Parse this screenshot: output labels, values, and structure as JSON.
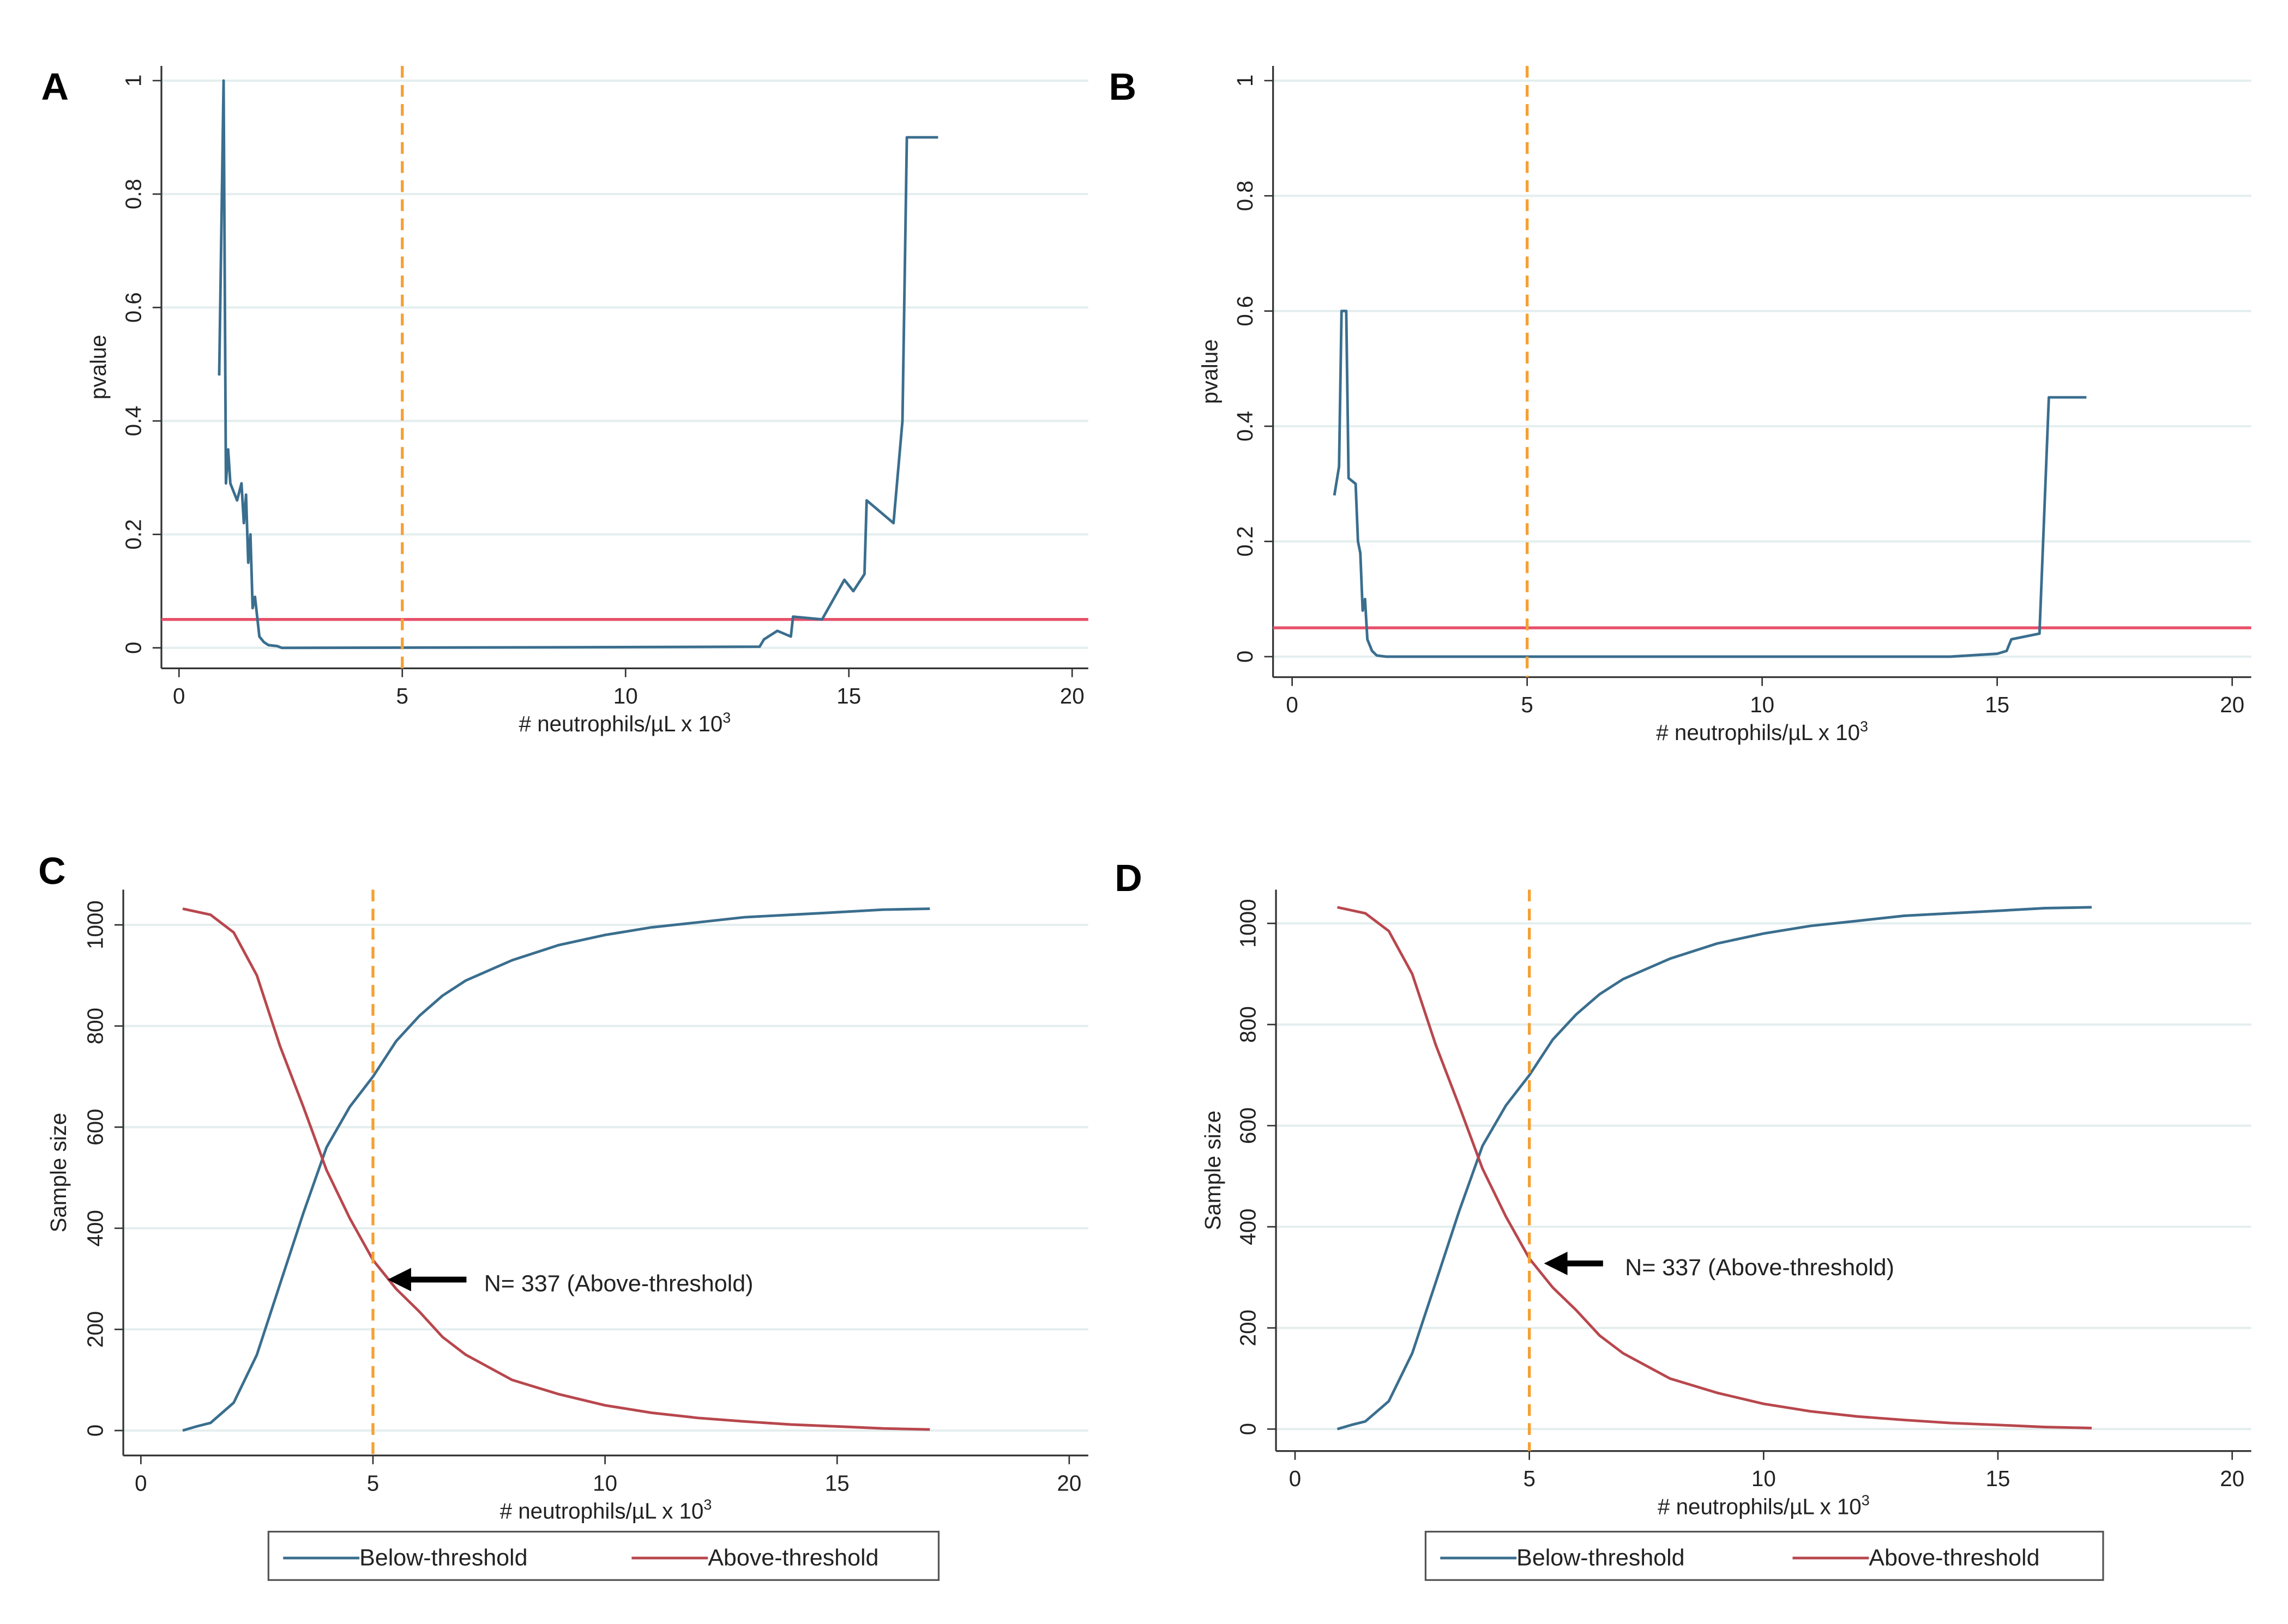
{
  "colors": {
    "below": "#3a6e8e",
    "above": "#b8474d",
    "cutoff": "#f5a033",
    "significance": "#e8506a",
    "grid": "#e4eeee"
  },
  "chart_data": [
    {
      "panel": "A",
      "type": "line",
      "xlabel": "# neutrophils/µL x 10",
      "xlabel_sup": "3",
      "ylabel": "pvalue",
      "xlim": [
        0,
        20
      ],
      "ylim": [
        0,
        1
      ],
      "xticks": [
        "0",
        "5",
        "10",
        "15",
        "20"
      ],
      "yticks": [
        "0",
        "0.2",
        "0.4",
        "0.6",
        "0.8",
        "1"
      ],
      "cutoff_x": 5,
      "significance_y": 0.05,
      "series": [
        {
          "name": "pvalue",
          "x": [
            0.9,
            1.0,
            1.05,
            1.1,
            1.15,
            1.3,
            1.4,
            1.45,
            1.5,
            1.55,
            1.6,
            1.65,
            1.7,
            1.8,
            1.9,
            2.0,
            2.2,
            2.3,
            9,
            13.0,
            13.1,
            13.4,
            13.7,
            13.75,
            14.4,
            14.9,
            15.1,
            15.35,
            15.4,
            16.0,
            16.2,
            16.3,
            17.0
          ],
          "y": [
            0.48,
            1.0,
            0.29,
            0.35,
            0.29,
            0.26,
            0.29,
            0.22,
            0.27,
            0.15,
            0.2,
            0.07,
            0.09,
            0.02,
            0.01,
            0.005,
            0.003,
            0,
            0.001,
            0.002,
            0.015,
            0.03,
            0.02,
            0.055,
            0.05,
            0.12,
            0.1,
            0.13,
            0.26,
            0.22,
            0.4,
            0.9,
            0.9
          ]
        }
      ]
    },
    {
      "panel": "B",
      "type": "line",
      "xlabel": "# neutrophils/µL x 10",
      "xlabel_sup": "3",
      "ylabel": "pvalue",
      "xlim": [
        0,
        20
      ],
      "ylim": [
        0,
        1
      ],
      "xticks": [
        "0",
        "5",
        "10",
        "15",
        "20"
      ],
      "yticks": [
        "0",
        "0.2",
        "0.4",
        "0.6",
        "0.8",
        "1"
      ],
      "cutoff_x": 5,
      "significance_y": 0.05,
      "series": [
        {
          "name": "pvalue",
          "x": [
            0.9,
            1.0,
            1.05,
            1.15,
            1.2,
            1.35,
            1.4,
            1.45,
            1.5,
            1.55,
            1.6,
            1.7,
            1.8,
            2.0,
            14.0,
            15.0,
            15.2,
            15.3,
            15.9,
            16.1,
            16.9
          ],
          "y": [
            0.28,
            0.33,
            0.6,
            0.6,
            0.31,
            0.3,
            0.2,
            0.18,
            0.08,
            0.1,
            0.03,
            0.01,
            0.002,
            0,
            0,
            0.005,
            0.01,
            0.03,
            0.04,
            0.45,
            0.45
          ]
        }
      ]
    },
    {
      "panel": "C",
      "type": "line",
      "xlabel": "# neutrophils/µL x 10",
      "xlabel_sup": "3",
      "ylabel": "Sample size",
      "xlim": [
        0,
        20
      ],
      "ylim": [
        0,
        1000
      ],
      "xticks": [
        "0",
        "5",
        "10",
        "15",
        "20"
      ],
      "yticks": [
        "0",
        "200",
        "400",
        "600",
        "800",
        "1000"
      ],
      "cutoff_x": 5,
      "annotation": "N= 337 (Above-threshold)",
      "annotation_point": [
        5,
        337
      ],
      "legend": [
        "Below-threshold",
        "Above-threshold"
      ],
      "legend_position": "bottom",
      "series": [
        {
          "name": "Below-threshold",
          "x": [
            0.9,
            1.2,
            1.5,
            2,
            2.5,
            3,
            3.5,
            4,
            4.5,
            5,
            5.5,
            6,
            6.5,
            7,
            8,
            9,
            10,
            11,
            12,
            13,
            14,
            15,
            16,
            17
          ],
          "y": [
            0,
            8,
            15,
            55,
            150,
            290,
            430,
            560,
            640,
            700,
            770,
            820,
            860,
            890,
            930,
            960,
            980,
            995,
            1005,
            1015,
            1020,
            1025,
            1030,
            1032
          ]
        },
        {
          "name": "Above-threshold",
          "x": [
            0.9,
            1.5,
            2,
            2.5,
            3,
            3.5,
            4,
            4.5,
            5,
            5.5,
            6,
            6.5,
            7,
            8,
            9,
            10,
            11,
            12,
            13,
            14,
            15,
            16,
            17
          ],
          "y": [
            1032,
            1020,
            985,
            900,
            760,
            640,
            515,
            420,
            337,
            280,
            235,
            185,
            150,
            100,
            72,
            50,
            35,
            25,
            18,
            12,
            8,
            4,
            2
          ]
        }
      ]
    },
    {
      "panel": "D",
      "type": "line",
      "xlabel": "# neutrophils/µL x 10",
      "xlabel_sup": "3",
      "ylabel": "Sample size",
      "xlim": [
        0,
        20
      ],
      "ylim": [
        0,
        1000
      ],
      "xticks": [
        "0",
        "5",
        "10",
        "15",
        "20"
      ],
      "yticks": [
        "0",
        "200",
        "400",
        "600",
        "800",
        "1000"
      ],
      "cutoff_x": 5,
      "annotation": "N= 337 (Above-threshold)",
      "annotation_point": [
        5,
        337
      ],
      "legend": [
        "Below-threshold",
        "Above-threshold"
      ],
      "legend_position": "bottom",
      "series": [
        {
          "name": "Below-threshold",
          "x": [
            0.9,
            1.2,
            1.5,
            2,
            2.5,
            3,
            3.5,
            4,
            4.5,
            5,
            5.5,
            6,
            6.5,
            7,
            8,
            9,
            10,
            11,
            12,
            13,
            14,
            15,
            16,
            17
          ],
          "y": [
            0,
            8,
            15,
            55,
            150,
            290,
            430,
            560,
            640,
            700,
            770,
            820,
            860,
            890,
            930,
            960,
            980,
            995,
            1005,
            1015,
            1020,
            1025,
            1030,
            1032
          ]
        },
        {
          "name": "Above-threshold",
          "x": [
            0.9,
            1.5,
            2,
            2.5,
            3,
            3.5,
            4,
            4.5,
            5,
            5.5,
            6,
            6.5,
            7,
            8,
            9,
            10,
            11,
            12,
            13,
            14,
            15,
            16,
            17
          ],
          "y": [
            1032,
            1020,
            985,
            900,
            760,
            640,
            515,
            420,
            337,
            280,
            235,
            185,
            150,
            100,
            72,
            50,
            35,
            25,
            18,
            12,
            8,
            4,
            2
          ]
        }
      ]
    }
  ]
}
